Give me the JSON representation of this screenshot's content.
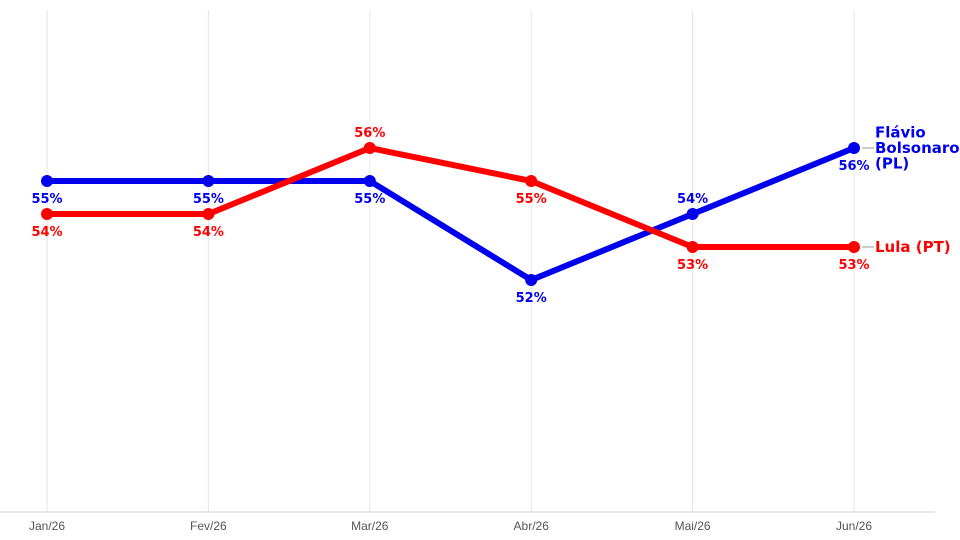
{
  "chart_data": {
    "type": "line",
    "x": [
      "Jan/26",
      "Fev/26",
      "Mar/26",
      "Abr/26",
      "Mai/26",
      "Jun/26"
    ],
    "ylim": [
      30,
      60
    ],
    "grid": "vertical",
    "series": [
      {
        "name": "Flávio Bolsonaro (PL)",
        "name_lines": [
          "Flávio",
          "Bolsonaro",
          "(PL)"
        ],
        "color": "#0000ee",
        "values": [
          55,
          55,
          55,
          52,
          54,
          56
        ],
        "labels": [
          "55%",
          "55%",
          "55%",
          "52%",
          "54%",
          "56%"
        ]
      },
      {
        "name": "Lula (PT)",
        "name_lines": [
          "Lula (PT)"
        ],
        "color": "#ff0000",
        "values": [
          54,
          54,
          56,
          55,
          53,
          53
        ],
        "labels": [
          "54%",
          "54%",
          "56%",
          "55%",
          "53%",
          "53%"
        ]
      }
    ]
  }
}
